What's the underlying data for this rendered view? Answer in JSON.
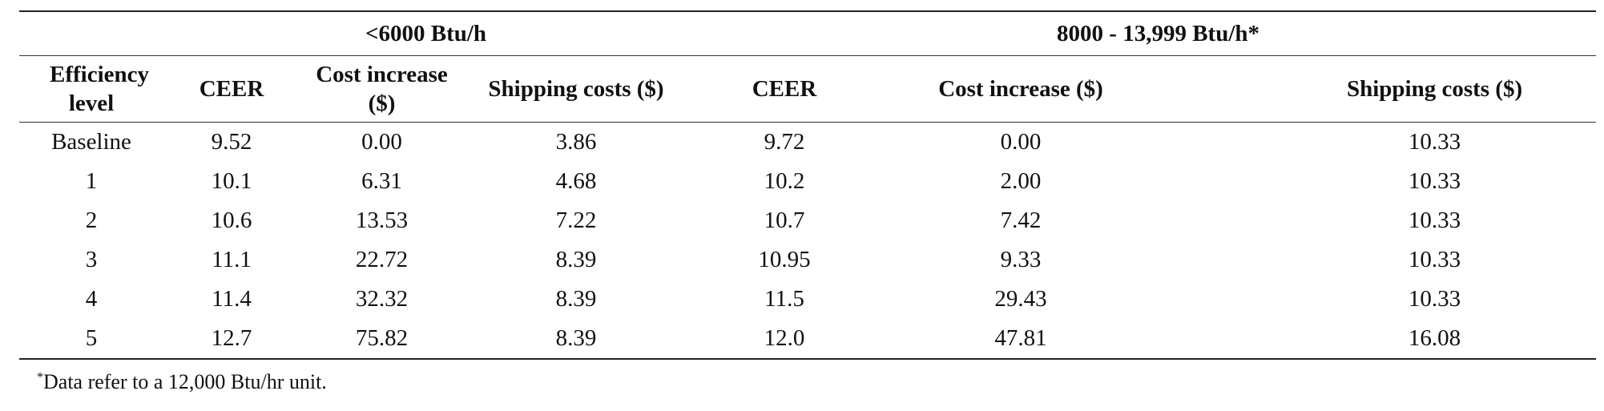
{
  "table": {
    "group_headers": [
      "<6000 Btu/h",
      "8000 - 13,999 Btu/h*"
    ],
    "columns": {
      "level": "Efficiency level",
      "ceer1": "CEER",
      "cost1": "Cost increase ($)",
      "ship1": "Shipping costs ($)",
      "ceer2": "CEER",
      "cost2": "Cost increase ($)",
      "ship2": "Shipping costs ($)"
    },
    "rows": [
      [
        "Baseline",
        "9.52",
        "0.00",
        "3.86",
        "9.72",
        "0.00",
        "10.33"
      ],
      [
        "1",
        "10.1",
        "6.31",
        "4.68",
        "10.2",
        "2.00",
        "10.33"
      ],
      [
        "2",
        "10.6",
        "13.53",
        "7.22",
        "10.7",
        "7.42",
        "10.33"
      ],
      [
        "3",
        "11.1",
        "22.72",
        "8.39",
        "10.95",
        "9.33",
        "10.33"
      ],
      [
        "4",
        "11.4",
        "32.32",
        "8.39",
        "11.5",
        "29.43",
        "10.33"
      ],
      [
        "5",
        "12.7",
        "75.82",
        "8.39",
        "12.0",
        "47.81",
        "16.08"
      ]
    ]
  },
  "footnote": {
    "marker": "*",
    "text": "Data refer to a 12,000 Btu/hr unit."
  }
}
